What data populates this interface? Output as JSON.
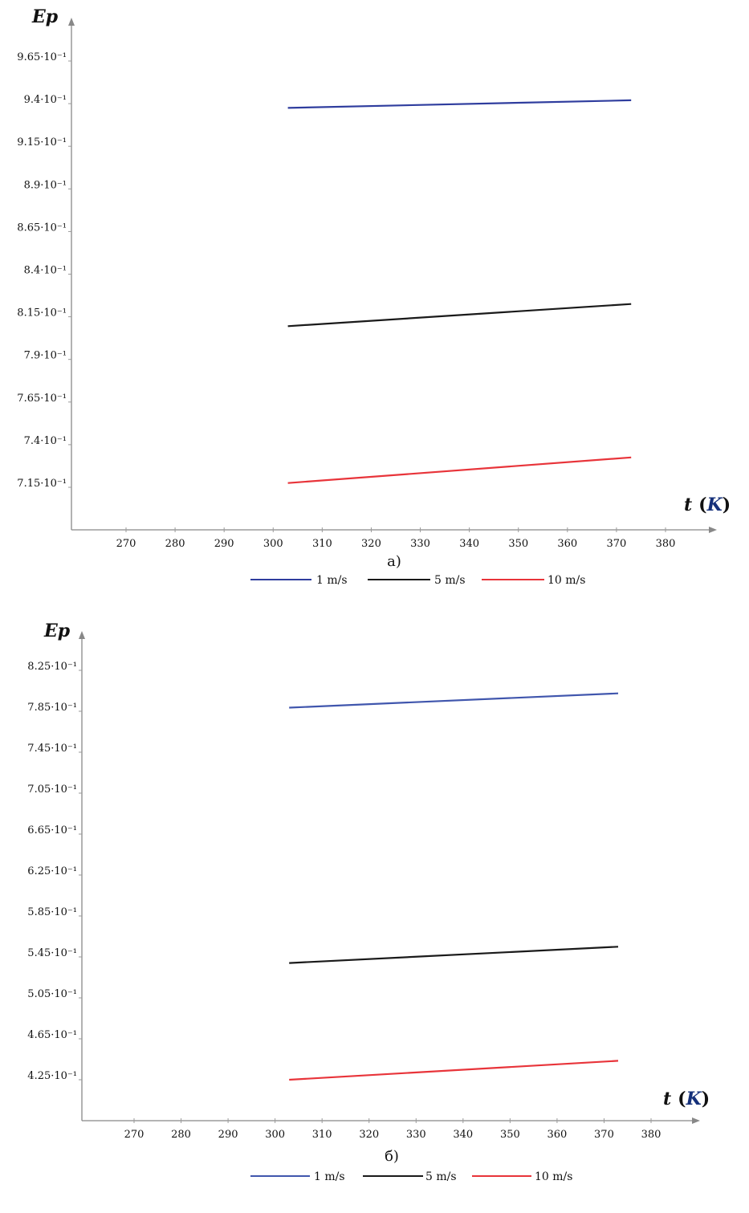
{
  "chart_data": [
    {
      "type": "line",
      "caption": "а)",
      "ylabel": "Ep",
      "xlabel_var": "t",
      "xlabel_unit": "K",
      "x_ticks": [
        270,
        280,
        290,
        300,
        310,
        320,
        330,
        340,
        350,
        360,
        370,
        380
      ],
      "y_ticks": [
        {
          "value": 0.965,
          "label": "9.65·10⁻¹"
        },
        {
          "value": 0.94,
          "label": "9.4·10⁻¹"
        },
        {
          "value": 0.915,
          "label": "9.15·10⁻¹"
        },
        {
          "value": 0.89,
          "label": "8.9·10⁻¹"
        },
        {
          "value": 0.865,
          "label": "8.65·10⁻¹"
        },
        {
          "value": 0.84,
          "label": "8.4·10⁻¹"
        },
        {
          "value": 0.815,
          "label": "8.15·10⁻¹"
        },
        {
          "value": 0.79,
          "label": "7.9·10⁻¹"
        },
        {
          "value": 0.765,
          "label": "7.65·10⁻¹"
        },
        {
          "value": 0.74,
          "label": "7.4·10⁻¹"
        },
        {
          "value": 0.715,
          "label": "7.15·10⁻¹"
        }
      ],
      "xlim": [
        259,
        383
      ],
      "ylim": [
        0.69,
        0.97
      ],
      "series": [
        {
          "name": "1 m/s",
          "color": "#2f3d9e",
          "x": [
            303,
            373
          ],
          "y": [
            0.9375,
            0.942
          ]
        },
        {
          "name": "5 m/s",
          "color": "#1a1a1a",
          "x": [
            303,
            373
          ],
          "y": [
            0.8095,
            0.8225
          ]
        },
        {
          "name": "10 m/s",
          "color": "#e8343a",
          "x": [
            303,
            373
          ],
          "y": [
            0.7175,
            0.7325
          ]
        }
      ]
    },
    {
      "type": "line",
      "caption": "б)",
      "ylabel": "Ep",
      "xlabel_var": "t",
      "xlabel_unit": "K",
      "x_ticks": [
        270,
        280,
        290,
        300,
        310,
        320,
        330,
        340,
        350,
        360,
        370,
        380
      ],
      "y_ticks": [
        {
          "value": 0.825,
          "label": "8.25·10⁻¹"
        },
        {
          "value": 0.785,
          "label": "7.85·10⁻¹"
        },
        {
          "value": 0.745,
          "label": "7.45·10⁻¹"
        },
        {
          "value": 0.705,
          "label": "7.05·10⁻¹"
        },
        {
          "value": 0.665,
          "label": "6.65·10⁻¹"
        },
        {
          "value": 0.625,
          "label": "6.25·10⁻¹"
        },
        {
          "value": 0.585,
          "label": "5.85·10⁻¹"
        },
        {
          "value": 0.545,
          "label": "5.45·10⁻¹"
        },
        {
          "value": 0.505,
          "label": "5.05·10⁻¹"
        },
        {
          "value": 0.465,
          "label": "4.65·10⁻¹"
        },
        {
          "value": 0.425,
          "label": "4.25·10⁻¹"
        }
      ],
      "xlim": [
        259,
        386
      ],
      "ylim": [
        0.385,
        0.83
      ],
      "series": [
        {
          "name": "1 m/s",
          "color": "#4056ad",
          "x": [
            303,
            373
          ],
          "y": [
            0.7885,
            0.8025
          ]
        },
        {
          "name": "5 m/s",
          "color": "#1a1a1a",
          "x": [
            303,
            373
          ],
          "y": [
            0.539,
            0.555
          ]
        },
        {
          "name": "10 m/s",
          "color": "#e8343a",
          "x": [
            303,
            373
          ],
          "y": [
            0.425,
            0.4435
          ]
        }
      ]
    }
  ]
}
